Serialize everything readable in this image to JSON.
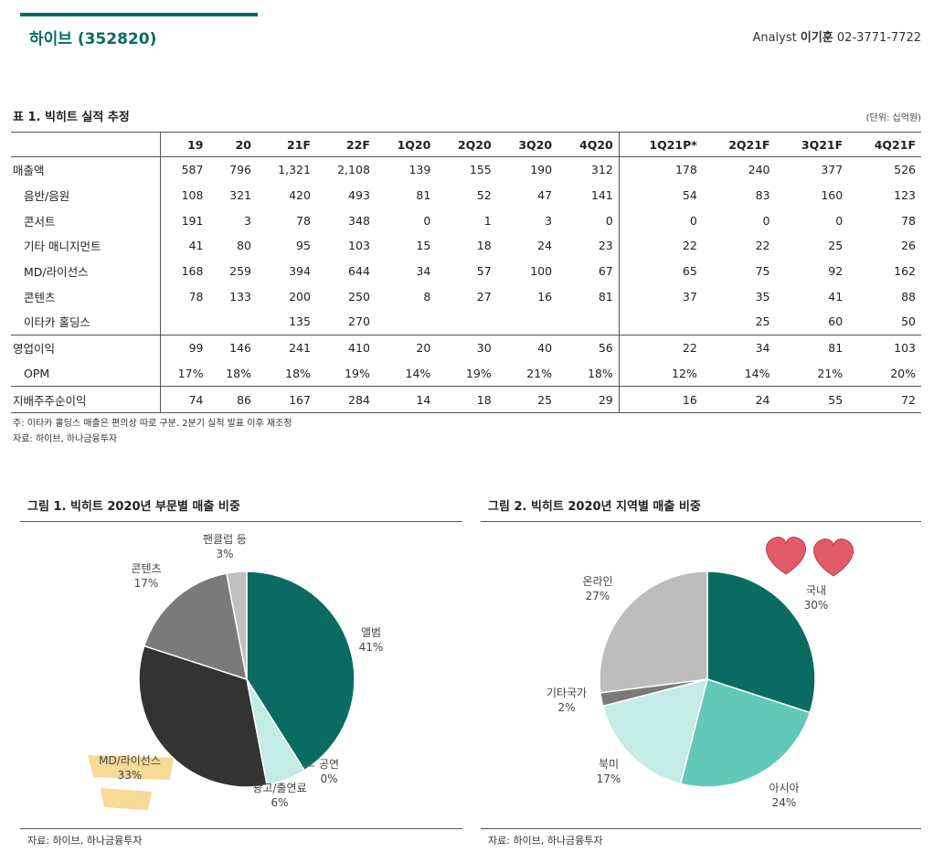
{
  "header": {
    "company": "하이브 (352820)",
    "analyst_label": "Analyst",
    "analyst_name": "이기훈",
    "analyst_phone": "02-3771-7722"
  },
  "table": {
    "title": "표 1. 빅히트 실적 추정",
    "unit": "(단위: 십억원)",
    "columns": [
      "19",
      "20",
      "21F",
      "22F",
      "1Q20",
      "2Q20",
      "3Q20",
      "4Q20",
      "1Q21P*",
      "2Q21F",
      "3Q21F",
      "4Q21F"
    ],
    "rows": [
      {
        "label": "매출액",
        "sub": false,
        "values": [
          "587",
          "796",
          "1,321",
          "2,108",
          "139",
          "155",
          "190",
          "312",
          "178",
          "240",
          "377",
          "526"
        ]
      },
      {
        "label": "음반/음원",
        "sub": true,
        "values": [
          "108",
          "321",
          "420",
          "493",
          "81",
          "52",
          "47",
          "141",
          "54",
          "83",
          "160",
          "123"
        ]
      },
      {
        "label": "콘서트",
        "sub": true,
        "values": [
          "191",
          "3",
          "78",
          "348",
          "0",
          "1",
          "3",
          "0",
          "0",
          "0",
          "0",
          "78"
        ]
      },
      {
        "label": "기타 매니지먼트",
        "sub": true,
        "values": [
          "41",
          "80",
          "95",
          "103",
          "15",
          "18",
          "24",
          "23",
          "22",
          "22",
          "25",
          "26"
        ]
      },
      {
        "label": "MD/라이선스",
        "sub": true,
        "values": [
          "168",
          "259",
          "394",
          "644",
          "34",
          "57",
          "100",
          "67",
          "65",
          "75",
          "92",
          "162"
        ]
      },
      {
        "label": "콘텐츠",
        "sub": true,
        "values": [
          "78",
          "133",
          "200",
          "250",
          "8",
          "27",
          "16",
          "81",
          "37",
          "35",
          "41",
          "88"
        ]
      },
      {
        "label": "이타카 홀딩스",
        "sub": true,
        "values": [
          "",
          "",
          "135",
          "270",
          "",
          "",
          "",
          "",
          "",
          "25",
          "60",
          "50"
        ]
      },
      {
        "label": "영업이익",
        "sub": false,
        "values": [
          "99",
          "146",
          "241",
          "410",
          "20",
          "30",
          "40",
          "56",
          "22",
          "34",
          "81",
          "103"
        ]
      },
      {
        "label": "OPM",
        "sub": true,
        "values": [
          "17%",
          "18%",
          "18%",
          "19%",
          "14%",
          "19%",
          "21%",
          "18%",
          "12%",
          "14%",
          "21%",
          "20%"
        ]
      },
      {
        "label": "지배주주순이익",
        "sub": false,
        "values": [
          "74",
          "86",
          "167",
          "284",
          "14",
          "18",
          "25",
          "29",
          "16",
          "24",
          "55",
          "72"
        ]
      }
    ],
    "note": "주: 이타카 홀딩스 매출은 편의상 따로 구분. 2분기 실적 발표 이후 재조정",
    "source": "자료: 하이브, 하나금융투자"
  },
  "chart_data": [
    {
      "type": "pie",
      "title": "그림 1. 빅히트 2020년 부문별 매출 비중",
      "categories": [
        "앨범",
        "공연",
        "광고/출연료",
        "MD/라이선스",
        "콘텐츠",
        "팬클럽 등"
      ],
      "values": [
        41,
        0,
        6,
        33,
        17,
        3
      ],
      "labels": [
        "41%",
        "0%",
        "6%",
        "33%",
        "17%",
        "3%"
      ],
      "colors": [
        "#0a6b60",
        "#0a6b60",
        "#c4ebe5",
        "#333333",
        "#7a7a7a",
        "#c0c0c0"
      ],
      "source": "자료: 하이브, 하나금융투자"
    },
    {
      "type": "pie",
      "title": "그림 2. 빅히트 2020년 지역별 매출 비중",
      "categories": [
        "국내",
        "아시아",
        "북미",
        "기타국가",
        "온라인"
      ],
      "values": [
        30,
        24,
        17,
        2,
        27
      ],
      "labels": [
        "30%",
        "24%",
        "17%",
        "2%",
        "27%"
      ],
      "colors": [
        "#0a6b60",
        "#62c8b8",
        "#c4ebe5",
        "#7a7a7a",
        "#bdbdbd"
      ],
      "source": "자료: 하이브, 하나금융투자"
    }
  ],
  "decor": {
    "sticky_note_color": "#f7d58a",
    "heart_color": "#e25a68"
  }
}
